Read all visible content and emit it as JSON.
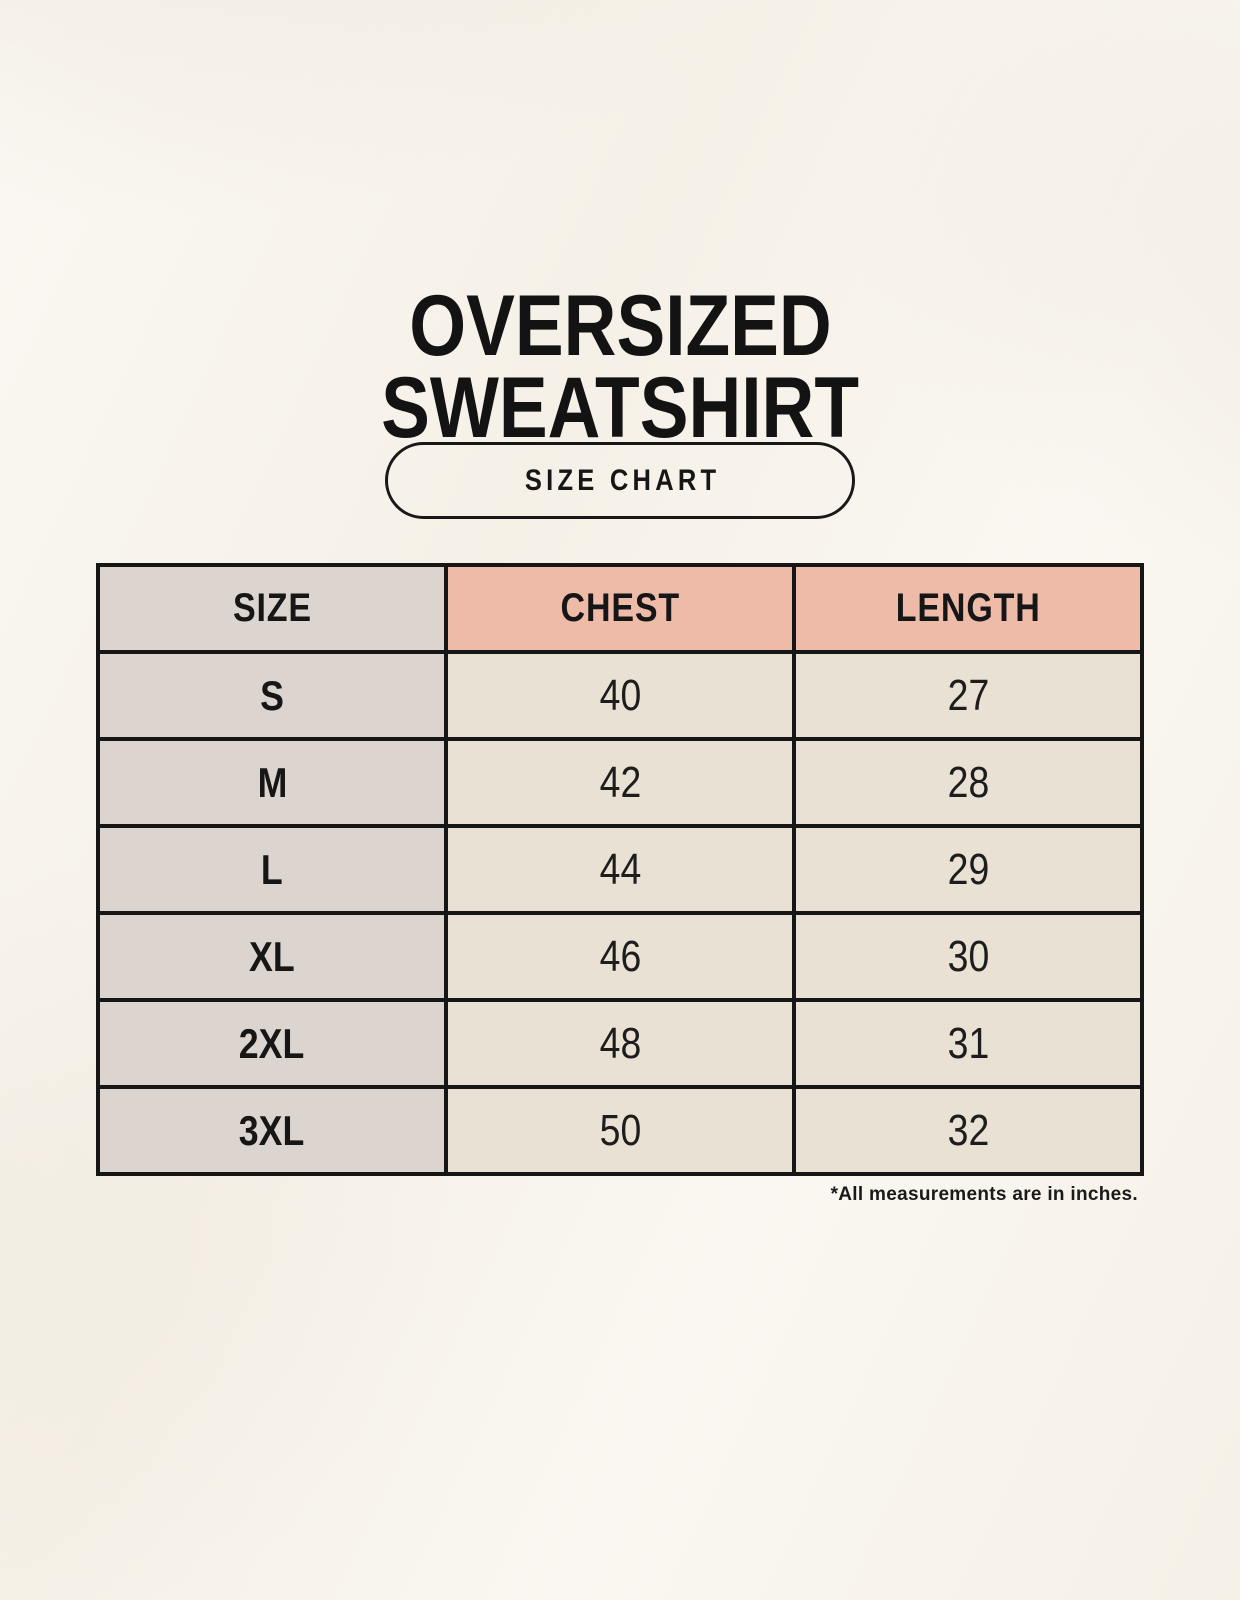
{
  "title": {
    "line1": "OVERSIZED",
    "line2": "SWEATSHIRT"
  },
  "badge": {
    "label": "SIZE CHART"
  },
  "chart_data": {
    "type": "table",
    "columns": [
      "SIZE",
      "CHEST",
      "LENGTH"
    ],
    "rows": [
      [
        "S",
        "40",
        "27"
      ],
      [
        "M",
        "42",
        "28"
      ],
      [
        "L",
        "44",
        "29"
      ],
      [
        "XL",
        "46",
        "30"
      ],
      [
        "2XL",
        "48",
        "31"
      ],
      [
        "3XL",
        "50",
        "32"
      ]
    ]
  },
  "footnote": "*All measurements are in inches.",
  "colors": {
    "background": "#f8f4ec",
    "header_pink": "#eebba9",
    "size_column_gray": "#dcd5cf",
    "cell_cream": "#e9e1d4",
    "ink": "#161616"
  }
}
